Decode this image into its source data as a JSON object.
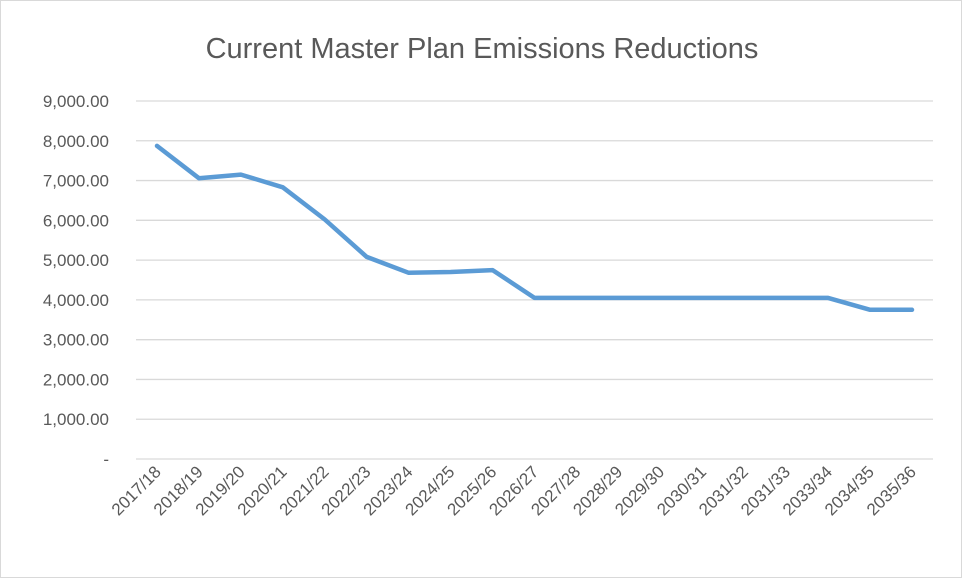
{
  "chart_data": {
    "type": "line",
    "title": "Current Master Plan Emissions Reductions",
    "xlabel": "",
    "ylabel": "",
    "categories": [
      "2017/18",
      "2018/19",
      "2019/20",
      "2020/21",
      "2021/22",
      "2022/23",
      "2023/24",
      "2024/25",
      "2025/26",
      "2026/27",
      "2027/28",
      "2028/29",
      "2029/30",
      "2030/31",
      "2031/32",
      "2031/33",
      "2033/34",
      "2034/35",
      "2035/36"
    ],
    "series": [
      {
        "values": [
          7870,
          7060,
          7150,
          6830,
          6020,
          5080,
          4680,
          4700,
          4750,
          4050,
          4050,
          4050,
          4050,
          4050,
          4050,
          4050,
          4050,
          3750,
          3750
        ],
        "color": "#5b9bd5"
      }
    ],
    "ylim": [
      0,
      9000
    ],
    "yticks": [
      0,
      1000,
      2000,
      3000,
      4000,
      5000,
      6000,
      7000,
      8000,
      9000
    ],
    "ytick_labels": [
      "-",
      "1,000.00",
      "2,000.00",
      "3,000.00",
      "4,000.00",
      "5,000.00",
      "6,000.00",
      "7,000.00",
      "8,000.00",
      "9,000.00"
    ],
    "grid": true,
    "legend": "none"
  }
}
